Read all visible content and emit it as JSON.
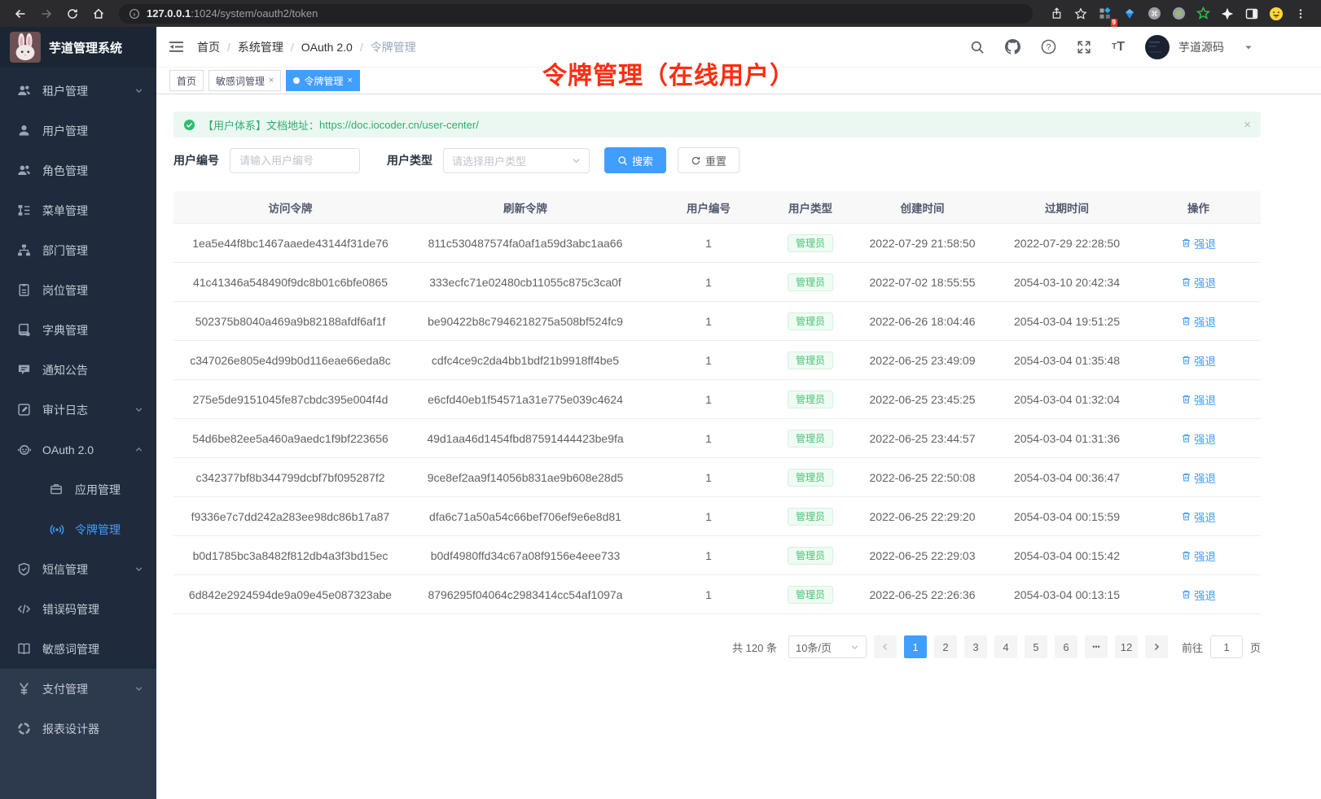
{
  "browser": {
    "url_host": "127.0.0.1",
    "url_path": ":1024/system/oauth2/token",
    "extension_badge": "9"
  },
  "sidebar": {
    "app_title": "芋道管理系统",
    "items": [
      {
        "icon": "users",
        "label": "租户管理",
        "chevron": "down"
      },
      {
        "icon": "user",
        "label": "用户管理"
      },
      {
        "icon": "users",
        "label": "角色管理"
      },
      {
        "icon": "menu-tree",
        "label": "菜单管理"
      },
      {
        "icon": "org",
        "label": "部门管理"
      },
      {
        "icon": "id-badge",
        "label": "岗位管理"
      },
      {
        "icon": "dictionary",
        "label": "字典管理"
      },
      {
        "icon": "message",
        "label": "通知公告"
      },
      {
        "icon": "audit",
        "label": "审计日志",
        "chevron": "down"
      },
      {
        "icon": "robot",
        "label": "OAuth 2.0",
        "chevron": "up"
      },
      {
        "icon": "briefcase",
        "label": "应用管理",
        "child": true
      },
      {
        "icon": "signal",
        "label": "令牌管理",
        "child": true,
        "active": true
      },
      {
        "icon": "shield",
        "label": "短信管理",
        "chevron": "down"
      },
      {
        "icon": "code",
        "label": "错误码管理"
      },
      {
        "icon": "book-open",
        "label": "敏感词管理"
      }
    ],
    "bottom_items": [
      {
        "icon": "yen",
        "label": "支付管理",
        "chevron": "down"
      },
      {
        "icon": "report",
        "label": "报表设计器"
      }
    ]
  },
  "navbar": {
    "breadcrumb": [
      "首页",
      "系统管理",
      "OAuth 2.0",
      "令牌管理"
    ],
    "username": "芋道源码"
  },
  "tags": [
    {
      "label": "首页",
      "closable": false,
      "active": false
    },
    {
      "label": "敏感词管理",
      "closable": true,
      "active": false
    },
    {
      "label": "令牌管理",
      "closable": true,
      "active": true
    }
  ],
  "annotation": "令牌管理（在线用户）",
  "alert": {
    "text": "【用户体系】文档地址：",
    "link": "https://doc.iocoder.cn/user-center/"
  },
  "filters": {
    "user_id_label": "用户编号",
    "user_id_placeholder": "请输入用户编号",
    "user_type_label": "用户类型",
    "user_type_placeholder": "请选择用户类型",
    "search_label": "搜索",
    "reset_label": "重置"
  },
  "table": {
    "columns": [
      "访问令牌",
      "刷新令牌",
      "用户编号",
      "用户类型",
      "创建时间",
      "过期时间",
      "操作"
    ],
    "user_type_tag": "管理员",
    "action_label": "强退",
    "rows": [
      {
        "access": "1ea5e44f8bc1467aaede43144f31de76",
        "refresh": "811c530487574fa0af1a59d3abc1aa66",
        "user_id": "1",
        "created": "2022-07-29 21:58:50",
        "expires": "2022-07-29 22:28:50"
      },
      {
        "access": "41c41346a548490f9dc8b01c6bfe0865",
        "refresh": "333ecfc71e02480cb11055c875c3ca0f",
        "user_id": "1",
        "created": "2022-07-02 18:55:55",
        "expires": "2054-03-10 20:42:34"
      },
      {
        "access": "502375b8040a469a9b82188afdf6af1f",
        "refresh": "be90422b8c7946218275a508bf524fc9",
        "user_id": "1",
        "created": "2022-06-26 18:04:46",
        "expires": "2054-03-04 19:51:25"
      },
      {
        "access": "c347026e805e4d99b0d116eae66eda8c",
        "refresh": "cdfc4ce9c2da4bb1bdf21b9918ff4be5",
        "user_id": "1",
        "created": "2022-06-25 23:49:09",
        "expires": "2054-03-04 01:35:48"
      },
      {
        "access": "275e5de9151045fe87cbdc395e004f4d",
        "refresh": "e6cfd40eb1f54571a31e775e039c4624",
        "user_id": "1",
        "created": "2022-06-25 23:45:25",
        "expires": "2054-03-04 01:32:04"
      },
      {
        "access": "54d6be82ee5a460a9aedc1f9bf223656",
        "refresh": "49d1aa46d1454fbd87591444423be9fa",
        "user_id": "1",
        "created": "2022-06-25 23:44:57",
        "expires": "2054-03-04 01:31:36"
      },
      {
        "access": "c342377bf8b344799dcbf7bf095287f2",
        "refresh": "9ce8ef2aa9f14056b831ae9b608e28d5",
        "user_id": "1",
        "created": "2022-06-25 22:50:08",
        "expires": "2054-03-04 00:36:47"
      },
      {
        "access": "f9336e7c7dd242a283ee98dc86b17a87",
        "refresh": "dfa6c71a50a54c66bef706ef9e6e8d81",
        "user_id": "1",
        "created": "2022-06-25 22:29:20",
        "expires": "2054-03-04 00:15:59"
      },
      {
        "access": "b0d1785bc3a8482f812db4a3f3bd15ec",
        "refresh": "b0df4980ffd34c67a08f9156e4eee733",
        "user_id": "1",
        "created": "2022-06-25 22:29:03",
        "expires": "2054-03-04 00:15:42"
      },
      {
        "access": "6d842e2924594de9a09e45e087323abe",
        "refresh": "8796295f04064c2983414cc54af1097a",
        "user_id": "1",
        "created": "2022-06-25 22:26:36",
        "expires": "2054-03-04 00:13:15"
      }
    ]
  },
  "pagination": {
    "total": "共 120 条",
    "page_size": "10条/页",
    "pages": [
      "1",
      "2",
      "3",
      "4",
      "5",
      "6",
      "...",
      "12"
    ],
    "active_page": "1",
    "goto_label": "前往",
    "goto_value": "1",
    "page_suffix": "页"
  },
  "colors": {
    "accent": "#409eff",
    "success": "#2fae6e",
    "annotation_red": "#fe2d10",
    "sidebar_bg": "#1f2b3d",
    "sidebar_bottom_bg": "#2d3a4e"
  }
}
